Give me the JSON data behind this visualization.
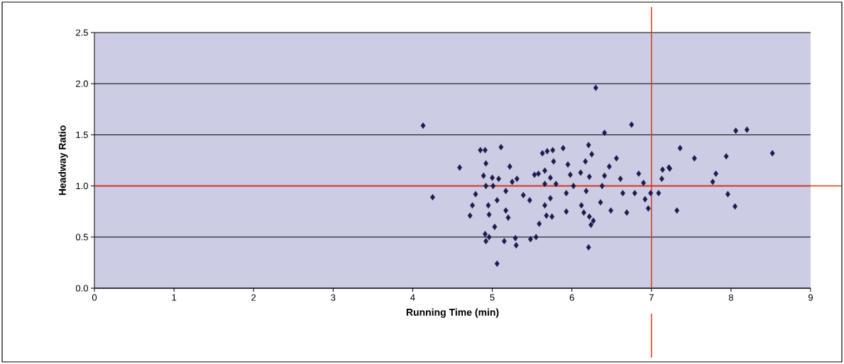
{
  "chart_data": {
    "type": "scatter",
    "xlabel": "Running Time (min)",
    "ylabel": "Headway Ratio",
    "xlim": [
      0,
      9
    ],
    "xticks": [
      0,
      1,
      2,
      3,
      4,
      5,
      6,
      7,
      8,
      9
    ],
    "ylim": [
      0,
      2.5
    ],
    "yticks": [
      {
        "value": 0,
        "label": "0.0"
      },
      {
        "value": 0.5,
        "label": "0.5"
      },
      {
        "value": 1,
        "label": "1.0"
      },
      {
        "value": 1.5,
        "label": "1.5"
      },
      {
        "value": 2,
        "label": "2.0"
      },
      {
        "value": 2.5,
        "label": "2.5"
      }
    ],
    "grid": "y",
    "marker": "diamond",
    "ref_lines": [
      {
        "axis": "x",
        "value": 7,
        "color": "#d83a22"
      },
      {
        "axis": "y",
        "value": 1,
        "color": "#d83a22"
      }
    ],
    "series": [
      {
        "color": "#1c1c4e",
        "x": [
          4.13,
          4.25,
          4.59,
          4.72,
          4.75,
          4.79,
          4.85,
          4.91,
          4.92,
          4.89,
          4.92,
          5.0,
          5.08,
          5.11,
          5.01,
          4.95,
          4.91,
          4.92,
          4.96,
          5.03,
          4.96,
          5.06,
          5.17,
          5.2,
          5.17,
          5.22,
          5.25,
          5.31,
          5.15,
          5.29,
          5.3,
          5.06,
          5.48,
          5.55,
          5.39,
          5.47,
          5.53,
          5.58,
          5.66,
          5.63,
          5.69,
          5.76,
          5.77,
          5.66,
          5.73,
          5.8,
          5.73,
          5.66,
          5.68,
          5.59,
          5.75,
          5.89,
          5.95,
          5.93,
          5.93,
          5.98,
          6.02,
          6.11,
          6.17,
          6.21,
          6.25,
          6.22,
          6.18,
          6.12,
          6.15,
          6.22,
          6.27,
          6.24,
          6.21,
          6.3,
          6.36,
          6.38,
          6.41,
          6.47,
          6.41,
          6.49,
          6.56,
          6.61,
          6.64,
          6.69,
          6.75,
          6.79,
          6.84,
          6.9,
          6.92,
          6.96,
          6.99,
          7.09,
          7.13,
          7.14,
          7.23,
          7.36,
          7.54,
          7.94,
          8.52,
          8.06,
          8.2,
          7.81,
          7.77,
          7.96,
          8.05,
          7.32,
          7.22
        ],
        "values": [
          1.59,
          0.89,
          1.18,
          0.71,
          0.81,
          0.92,
          1.35,
          1.35,
          1.22,
          1.1,
          1.0,
          1.08,
          1.07,
          1.38,
          1.0,
          0.81,
          0.53,
          0.46,
          0.5,
          0.6,
          0.72,
          0.86,
          0.76,
          0.69,
          0.95,
          1.19,
          1.04,
          1.07,
          0.46,
          0.49,
          0.42,
          0.24,
          0.48,
          0.5,
          0.91,
          0.86,
          1.11,
          1.12,
          1.15,
          1.32,
          1.34,
          1.35,
          1.24,
          1.02,
          1.08,
          1.02,
          0.88,
          0.81,
          0.71,
          0.63,
          0.7,
          1.37,
          1.21,
          0.93,
          0.75,
          1.11,
          1.0,
          1.13,
          1.24,
          1.4,
          1.31,
          1.09,
          0.95,
          0.81,
          0.74,
          0.7,
          0.66,
          0.62,
          0.4,
          1.96,
          0.84,
          1.0,
          1.1,
          1.19,
          1.52,
          0.76,
          1.27,
          1.07,
          0.93,
          0.74,
          1.6,
          0.93,
          1.12,
          1.03,
          0.87,
          0.78,
          0.93,
          0.93,
          1.07,
          1.16,
          1.17,
          1.37,
          1.27,
          1.29,
          1.32,
          1.54,
          1.55,
          1.12,
          1.04,
          0.92,
          0.8,
          0.76,
          1.18
        ]
      }
    ]
  }
}
